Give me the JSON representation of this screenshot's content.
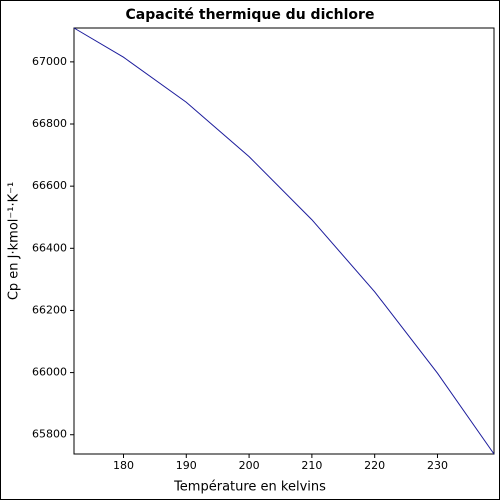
{
  "chart_data": {
    "type": "line",
    "title": "Capacité thermique du dichlore",
    "x_label": "Température en kelvins",
    "y_label": "Cp en J·kmol⁻¹·K⁻¹",
    "x": [
      172.12,
      180,
      190,
      200,
      210,
      220,
      230,
      239
    ],
    "series": [
      {
        "color": "#1c1c9c",
        "values": [
          67109,
          67015,
          66870,
          66695,
          66492,
          66260,
          65998,
          65738
        ]
      }
    ],
    "xlim": [
      172.12,
      239
    ],
    "ylim": [
      65738,
      67109
    ],
    "xticks": [
      180,
      190,
      200,
      210,
      220,
      230
    ],
    "yticks": [
      65800,
      66000,
      66200,
      66400,
      66600,
      66800,
      67000
    ]
  }
}
